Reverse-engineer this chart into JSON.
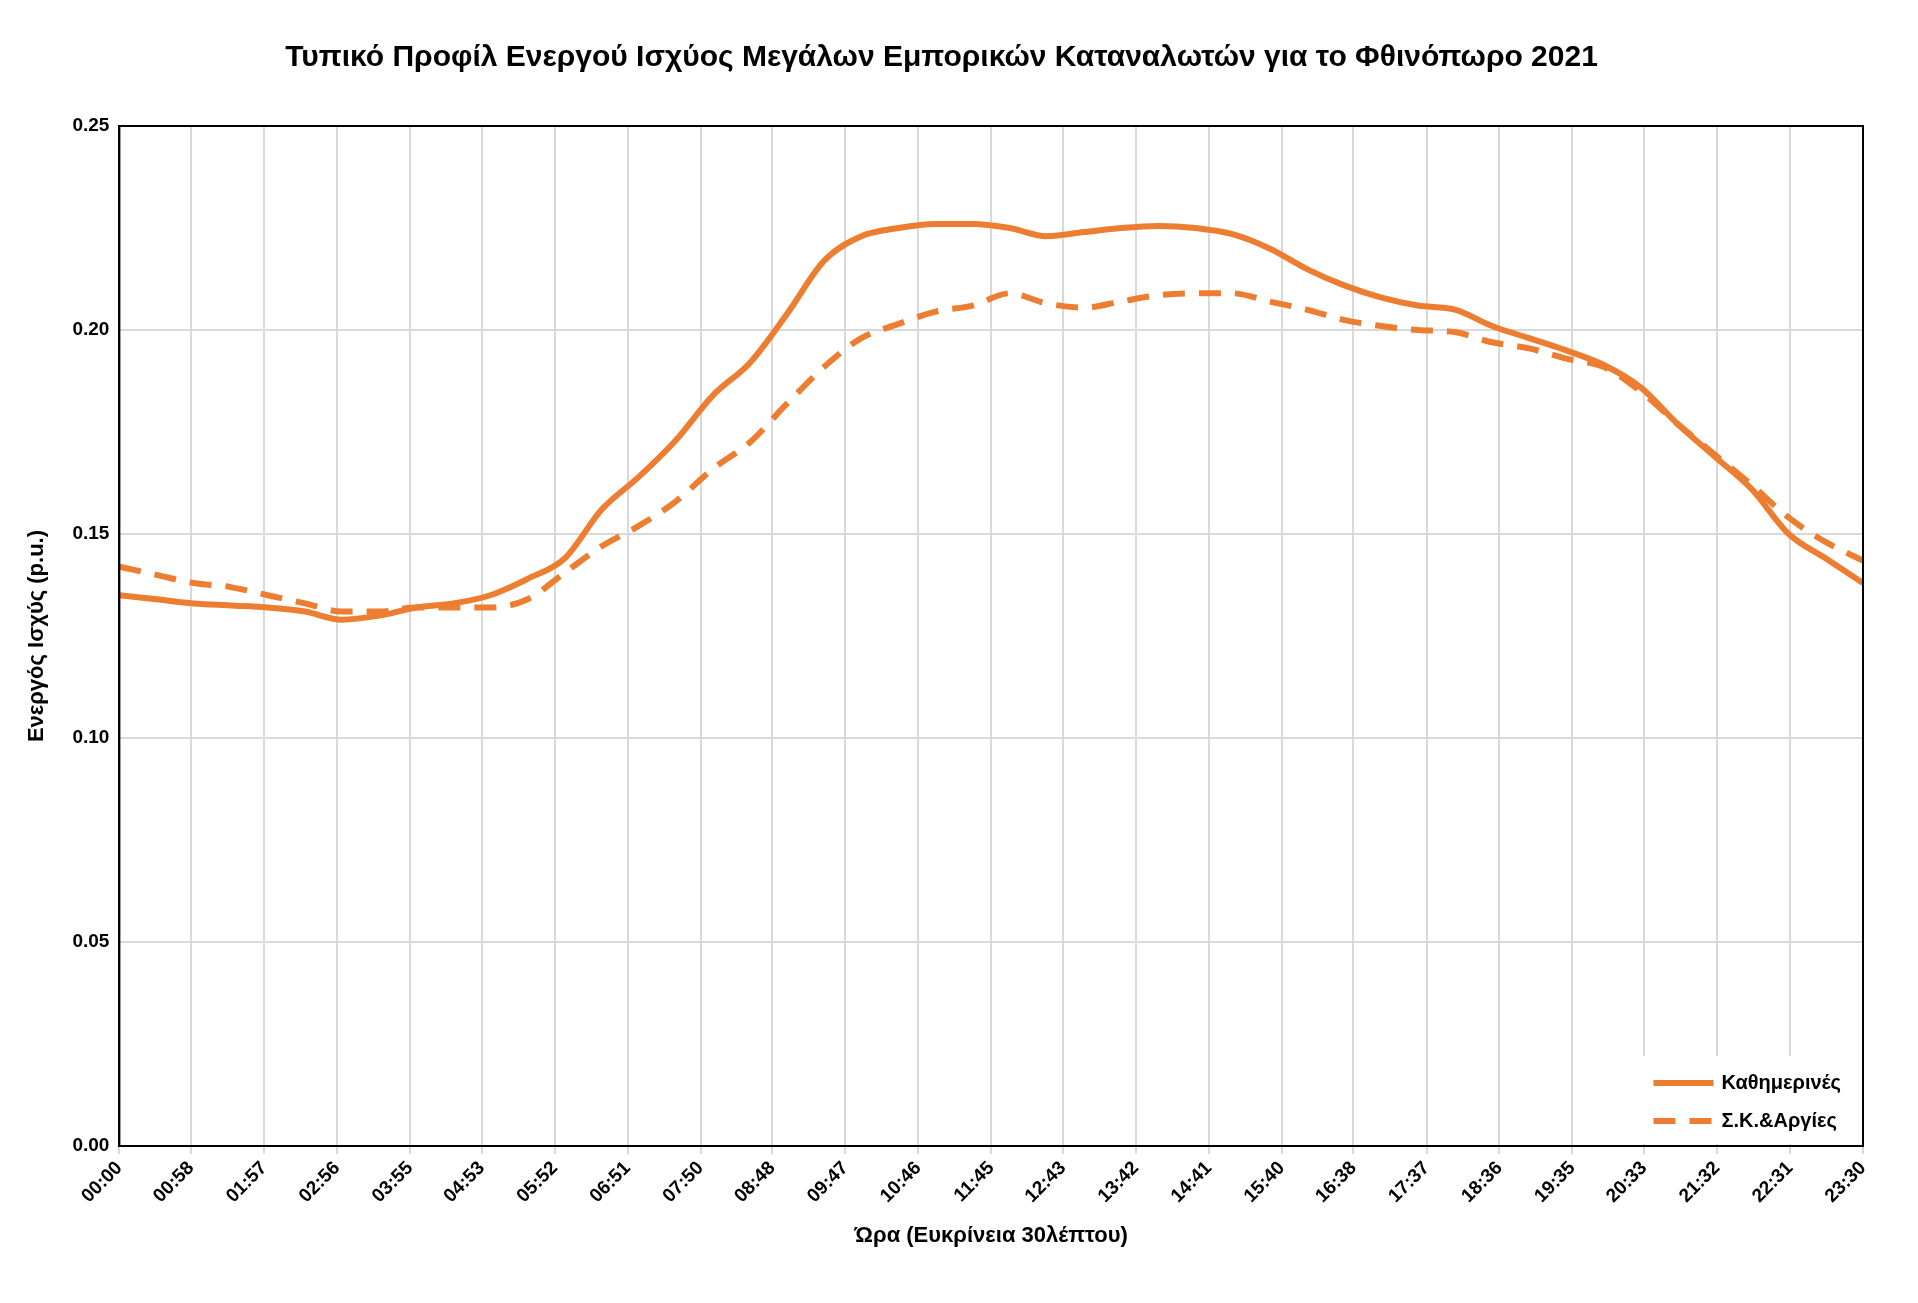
{
  "chart_data": {
    "type": "line",
    "title": "Τυπικό Προφίλ Ενεργού Ισχύος Μεγάλων Εμπορικών Καταναλωτών για το Φθινόπωρο 2021",
    "xlabel": "Ώρα (Ευκρίνεια 30λέπτου)",
    "ylabel": "Ενεργός Ισχύς (p.u.)",
    "x": [
      0,
      0.5,
      1,
      1.5,
      2,
      2.5,
      3,
      3.5,
      4,
      4.5,
      5,
      5.5,
      6,
      6.5,
      7,
      7.5,
      8,
      8.5,
      9,
      9.5,
      10,
      10.5,
      11,
      11.5,
      12,
      12.5,
      13,
      13.5,
      14,
      14.5,
      15,
      15.5,
      16,
      16.5,
      17,
      17.5,
      18,
      18.5,
      19,
      19.5,
      20,
      20.5,
      21,
      21.5,
      22,
      22.5,
      23,
      23.5
    ],
    "series": [
      {
        "name": "Καθημερινές",
        "color": "#ed7d31",
        "line_style": "solid",
        "values": [
          0.135,
          0.134,
          0.133,
          0.1325,
          0.132,
          0.131,
          0.129,
          0.13,
          0.132,
          0.133,
          0.135,
          0.139,
          0.144,
          0.156,
          0.164,
          0.173,
          0.184,
          0.192,
          0.204,
          0.217,
          0.223,
          0.225,
          0.226,
          0.226,
          0.225,
          0.223,
          0.224,
          0.225,
          0.2255,
          0.225,
          0.2235,
          0.22,
          0.215,
          0.211,
          0.208,
          0.206,
          0.205,
          0.201,
          0.198,
          0.195,
          0.1915,
          0.186,
          0.177,
          0.169,
          0.161,
          0.15,
          0.144,
          0.138
        ]
      },
      {
        "name": "Σ.Κ.&Αργίες",
        "color": "#ed7d31",
        "line_style": "dashed",
        "values": [
          0.142,
          0.14,
          0.138,
          0.137,
          0.135,
          0.133,
          0.131,
          0.131,
          0.132,
          0.132,
          0.132,
          0.134,
          0.1405,
          0.147,
          0.152,
          0.158,
          0.166,
          0.1725,
          0.182,
          0.191,
          0.198,
          0.2015,
          0.2045,
          0.206,
          0.209,
          0.2065,
          0.2055,
          0.207,
          0.2085,
          0.209,
          0.209,
          0.207,
          0.205,
          0.2025,
          0.201,
          0.2,
          0.1995,
          0.197,
          0.1955,
          0.193,
          0.191,
          0.185,
          0.177,
          0.1695,
          0.162,
          0.154,
          0.148,
          0.1435
        ]
      }
    ],
    "xlim": [
      0,
      23.5
    ],
    "xticks": [
      {
        "value": 0,
        "label": "00:00"
      },
      {
        "value": 0.967,
        "label": "00:58"
      },
      {
        "value": 1.95,
        "label": "01:57"
      },
      {
        "value": 2.933,
        "label": "02:56"
      },
      {
        "value": 3.917,
        "label": "03:55"
      },
      {
        "value": 4.883,
        "label": "04:53"
      },
      {
        "value": 5.867,
        "label": "05:52"
      },
      {
        "value": 6.85,
        "label": "06:51"
      },
      {
        "value": 7.833,
        "label": "07:50"
      },
      {
        "value": 8.8,
        "label": "08:48"
      },
      {
        "value": 9.783,
        "label": "09:47"
      },
      {
        "value": 10.767,
        "label": "10:46"
      },
      {
        "value": 11.75,
        "label": "11:45"
      },
      {
        "value": 12.717,
        "label": "12:43"
      },
      {
        "value": 13.7,
        "label": "13:42"
      },
      {
        "value": 14.683,
        "label": "14:41"
      },
      {
        "value": 15.667,
        "label": "15:40"
      },
      {
        "value": 16.633,
        "label": "16:38"
      },
      {
        "value": 17.617,
        "label": "17:37"
      },
      {
        "value": 18.6,
        "label": "18:36"
      },
      {
        "value": 19.583,
        "label": "19:35"
      },
      {
        "value": 20.55,
        "label": "20:33"
      },
      {
        "value": 21.533,
        "label": "21:32"
      },
      {
        "value": 22.517,
        "label": "22:31"
      },
      {
        "value": 23.5,
        "label": "23:30"
      }
    ],
    "ylim": [
      0,
      0.25
    ],
    "yticks": [
      {
        "value": 0,
        "label": "0.00"
      },
      {
        "value": 0.05,
        "label": "0.05"
      },
      {
        "value": 0.1,
        "label": "0.10"
      },
      {
        "value": 0.15,
        "label": "0.15"
      },
      {
        "value": 0.2,
        "label": "0.20"
      },
      {
        "value": 0.25,
        "label": "0.25"
      }
    ],
    "grid": true,
    "legend": "bottom right",
    "marker": "none"
  }
}
